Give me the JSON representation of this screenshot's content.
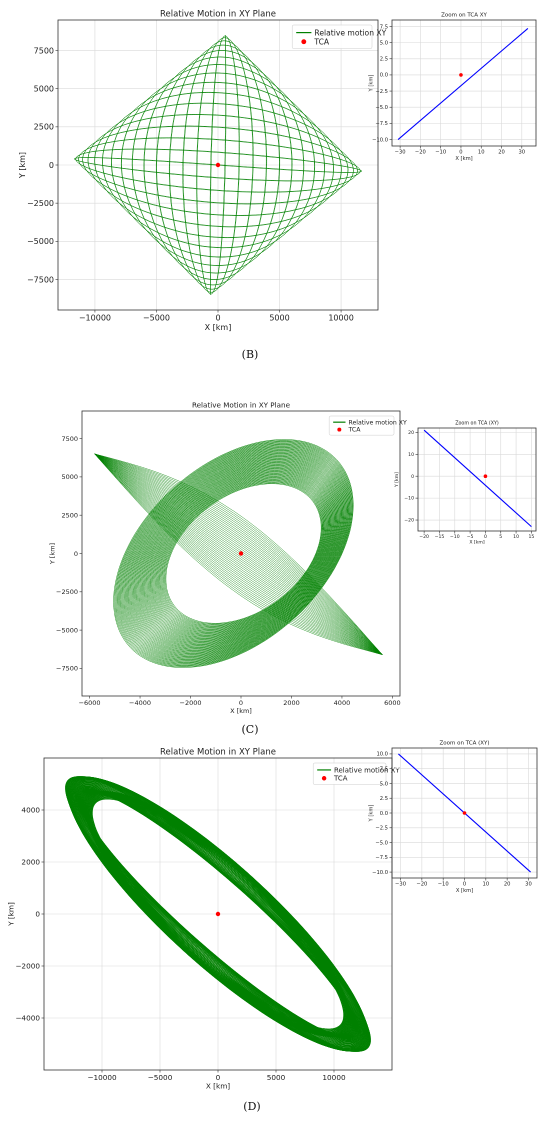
{
  "panels": [
    {
      "caption": "(B)",
      "main": {
        "type": "line",
        "title": "Relative Motion in XY Plane",
        "xlabel": "X [km]",
        "ylabel": "Y [km]",
        "xlim": [
          -13000,
          13000
        ],
        "ylim": [
          -9500,
          9500
        ],
        "xticks": [
          -10000,
          -5000,
          0,
          5000,
          10000
        ],
        "yticks": [
          -7500,
          -5000,
          -2500,
          0,
          2500,
          5000,
          7500
        ],
        "grid": true,
        "legend_position": "top-right",
        "series": [
          {
            "name": "Relative motion XY",
            "color": "#008000",
            "style": "lissajous-square"
          }
        ],
        "tca": {
          "name": "TCA",
          "x": 0,
          "y": 0,
          "color": "#ff0000"
        }
      },
      "zoom": {
        "type": "line",
        "title": "Zoom on TCA XY",
        "xlabel": "X [km]",
        "ylabel": "Y [km]",
        "xlim": [
          -34,
          37
        ],
        "ylim": [
          -11,
          8.5
        ],
        "xticks": [
          -30,
          -20,
          -10,
          0,
          10,
          20,
          30
        ],
        "yticks": [
          -10.0,
          -7.5,
          -5.0,
          -2.5,
          0.0,
          2.5,
          5.0,
          7.5
        ],
        "ytick_decimals": 1,
        "grid": true,
        "series": [
          {
            "color": "#0000ff",
            "x": [
              -31,
              33
            ],
            "y": [
              -10,
              7.2
            ]
          }
        ],
        "tca": {
          "x": 0,
          "y": 0,
          "color": "#ff0000"
        }
      }
    },
    {
      "caption": "(C)",
      "main": {
        "type": "line",
        "title": "Relative Motion in XY Plane",
        "xlabel": "X [km]",
        "ylabel": "Y [km]",
        "xlim": [
          -6300,
          6300
        ],
        "ylim": [
          -9300,
          9300
        ],
        "xticks": [
          -6000,
          -4000,
          -2000,
          0,
          2000,
          4000,
          6000
        ],
        "yticks": [
          -7500,
          -5000,
          -2500,
          0,
          2500,
          5000,
          7500
        ],
        "grid": false,
        "legend_position": "top-right",
        "series": [
          {
            "name": "Relative motion XY",
            "color": "#008000",
            "style": "ellipse-family"
          }
        ],
        "tca": {
          "name": "TCA",
          "x": 0,
          "y": 0,
          "color": "#ff0000"
        }
      },
      "zoom": {
        "type": "line",
        "title": "Zoom on TCA (XY)",
        "xlabel": "X [km]",
        "ylabel": "Y [km]",
        "xlim": [
          -22,
          16.5
        ],
        "ylim": [
          -25,
          22
        ],
        "xticks": [
          -20,
          -15,
          -10,
          -5,
          0,
          5,
          10,
          15
        ],
        "yticks": [
          -20,
          -10,
          0,
          10,
          20
        ],
        "ytick_decimals": 0,
        "grid": true,
        "series": [
          {
            "color": "#0000ff",
            "x": [
              -20,
              15
            ],
            "y": [
              21,
              -23
            ]
          }
        ],
        "tca": {
          "x": 0,
          "y": 0,
          "color": "#ff0000"
        }
      }
    },
    {
      "caption": "(D)",
      "main": {
        "type": "line",
        "title": "Relative Motion in XY Plane",
        "xlabel": "X [km]",
        "ylabel": "Y [km]",
        "xlim": [
          -15000,
          15000
        ],
        "ylim": [
          -6000,
          6000
        ],
        "xticks": [
          -10000,
          -5000,
          0,
          5000,
          10000
        ],
        "yticks": [
          -4000,
          -2000,
          0,
          2000,
          4000
        ],
        "grid": true,
        "legend_position": "top-right",
        "series": [
          {
            "name": "Relative motion XY",
            "color": "#008000",
            "style": "tilted-ellipse-family"
          }
        ],
        "tca": {
          "name": "TCA",
          "x": 0,
          "y": 0,
          "color": "#ff0000"
        }
      },
      "zoom": {
        "type": "line",
        "title": "Zoom on TCA (XY)",
        "xlabel": "X [km]",
        "ylabel": "Y [km]",
        "xlim": [
          -34,
          34
        ],
        "ylim": [
          -11,
          11
        ],
        "xticks": [
          -30,
          -20,
          -10,
          0,
          10,
          20,
          30
        ],
        "yticks": [
          -10.0,
          -7.5,
          -5.0,
          -2.5,
          0.0,
          2.5,
          5.0,
          7.5,
          10.0
        ],
        "ytick_decimals": 1,
        "grid": true,
        "series": [
          {
            "color": "#0000ff",
            "x": [
              -31,
              31
            ],
            "y": [
              10,
              -10
            ]
          }
        ],
        "tca": {
          "x": 0,
          "y": 0,
          "color": "#ff0000"
        }
      }
    }
  ]
}
